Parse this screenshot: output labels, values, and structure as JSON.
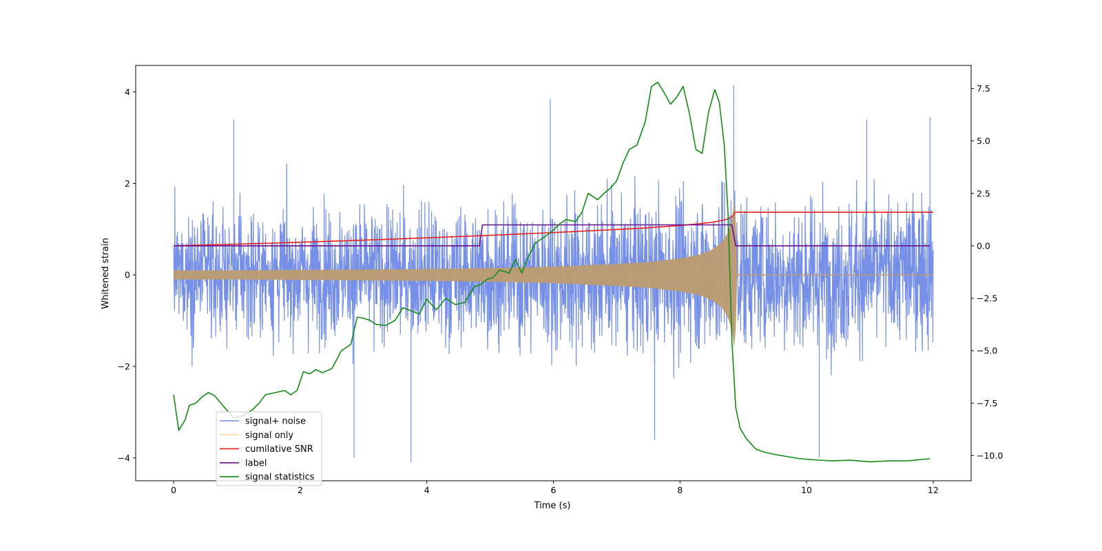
{
  "chart_data": {
    "type": "line",
    "title": "",
    "xlabel": "Time (s)",
    "ylabel": "Whitened strain",
    "y2label": "",
    "xlim": [
      -0.6,
      12.6
    ],
    "ylim": [
      -4.5,
      4.58
    ],
    "y2lim": [
      -11.2,
      8.6
    ],
    "grid": false,
    "legend_position": "bottom-left",
    "x_ticks": [
      0,
      2,
      4,
      6,
      8,
      10,
      12
    ],
    "x_tick_labels": [
      "0",
      "2",
      "4",
      "6",
      "8",
      "10",
      "12"
    ],
    "y_ticks": [
      -4,
      -2,
      0,
      2,
      4
    ],
    "y_tick_labels": [
      "−4",
      "−2",
      "0",
      "2",
      "4"
    ],
    "y2_ticks": [
      -10,
      -7.5,
      -5,
      -2.5,
      0,
      2.5,
      5,
      7.5
    ],
    "y2_tick_labels": [
      "−10.0",
      "−7.5",
      "−5.0",
      "−2.5",
      "0.0",
      "2.5",
      "5.0",
      "7.5"
    ],
    "series": [
      {
        "name": "signal+ noise",
        "color": "#6f8ae6",
        "axis": "left",
        "kind": "noise_trace",
        "x_range": [
          0,
          12
        ],
        "envelope": {
          "x": [
            0,
            2,
            4,
            6,
            7,
            8,
            8.5,
            8.85,
            9,
            10,
            12
          ],
          "upper": [
            2.7,
            2.8,
            2.9,
            3.1,
            3.2,
            3.4,
            3.6,
            4.15,
            3.3,
            3.2,
            3.4
          ],
          "lower": [
            -2.6,
            -2.7,
            -2.9,
            -3.1,
            -3.2,
            -3.4,
            -3.5,
            -3.6,
            -3.2,
            -3.3,
            -3.1
          ]
        },
        "extremes": [
          {
            "x": 0.95,
            "y": 3.4
          },
          {
            "x": 2.85,
            "y": -4.0
          },
          {
            "x": 3.75,
            "y": -4.1
          },
          {
            "x": 5.95,
            "y": 3.85
          },
          {
            "x": 7.6,
            "y": -3.6
          },
          {
            "x": 8.85,
            "y": 4.15
          },
          {
            "x": 10.2,
            "y": -4.0
          },
          {
            "x": 11.95,
            "y": 3.45
          },
          {
            "x": 10.95,
            "y": 3.4
          }
        ]
      },
      {
        "name": "signal only",
        "color": "#ffbb55",
        "fill_color": "#bb9b73",
        "axis": "left",
        "kind": "chirp_envelope",
        "x": [
          0,
          1,
          2,
          3,
          4,
          5,
          6,
          7,
          7.5,
          8,
          8.3,
          8.5,
          8.65,
          8.75,
          8.82,
          8.87,
          8.9,
          12
        ],
        "amplitude": [
          0.1,
          0.1,
          0.11,
          0.12,
          0.13,
          0.15,
          0.18,
          0.24,
          0.28,
          0.36,
          0.44,
          0.55,
          0.7,
          0.9,
          1.2,
          1.75,
          0.0,
          0.0
        ]
      },
      {
        "name": "cumilative SNR",
        "color": "#e8201c",
        "axis": "right",
        "x": [
          0,
          1,
          2,
          3,
          4,
          5,
          6,
          7,
          7.5,
          8,
          8.3,
          8.5,
          8.65,
          8.75,
          8.82,
          8.87,
          12
        ],
        "values": [
          0.0,
          0.08,
          0.17,
          0.27,
          0.38,
          0.5,
          0.63,
          0.78,
          0.86,
          0.97,
          1.05,
          1.12,
          1.2,
          1.27,
          1.38,
          1.6,
          1.6
        ]
      },
      {
        "name": "label",
        "color": "#6a0f8e",
        "axis": "right",
        "x": [
          0,
          4.83,
          4.88,
          8.82,
          8.88,
          11.95
        ],
        "values": [
          0,
          0,
          1,
          1,
          0,
          0
        ]
      },
      {
        "name": "signal statistics",
        "color": "#138a13",
        "axis": "right",
        "x": [
          0,
          0.08,
          0.18,
          0.25,
          0.35,
          0.45,
          0.55,
          0.65,
          0.8,
          0.95,
          1.1,
          1.25,
          1.35,
          1.45,
          1.6,
          1.75,
          1.85,
          1.95,
          2.05,
          2.15,
          2.25,
          2.35,
          2.5,
          2.65,
          2.8,
          2.9,
          3.0,
          3.1,
          3.2,
          3.35,
          3.5,
          3.62,
          3.75,
          3.88,
          4.0,
          4.15,
          4.3,
          4.45,
          4.6,
          4.75,
          4.85,
          4.95,
          5.05,
          5.15,
          5.3,
          5.4,
          5.5,
          5.6,
          5.72,
          5.85,
          6.0,
          6.1,
          6.2,
          6.35,
          6.45,
          6.55,
          6.7,
          6.8,
          6.9,
          7.0,
          7.1,
          7.2,
          7.32,
          7.45,
          7.55,
          7.65,
          7.75,
          7.85,
          7.95,
          8.05,
          8.15,
          8.25,
          8.35,
          8.45,
          8.55,
          8.62,
          8.7,
          8.76,
          8.82,
          8.88,
          8.95,
          9.05,
          9.2,
          9.35,
          9.5,
          9.7,
          9.9,
          10.1,
          10.4,
          10.7,
          11.0,
          11.3,
          11.6,
          11.95
        ],
        "values": [
          -7.1,
          -8.8,
          -8.3,
          -7.6,
          -7.5,
          -7.2,
          -7.0,
          -7.15,
          -7.7,
          -8.2,
          -8.1,
          -7.8,
          -7.5,
          -7.1,
          -7.0,
          -6.9,
          -7.1,
          -6.9,
          -6.0,
          -6.1,
          -5.9,
          -6.05,
          -5.85,
          -5.0,
          -4.7,
          -3.4,
          -3.45,
          -3.55,
          -3.75,
          -3.8,
          -3.55,
          -2.95,
          -3.1,
          -3.25,
          -2.55,
          -3.05,
          -2.5,
          -2.8,
          -2.7,
          -1.95,
          -1.85,
          -1.6,
          -1.5,
          -1.15,
          -1.3,
          -0.65,
          -1.3,
          -0.55,
          0.15,
          0.4,
          0.75,
          1.05,
          1.25,
          1.15,
          1.6,
          2.5,
          2.2,
          2.5,
          2.75,
          3.1,
          3.95,
          4.6,
          4.8,
          5.9,
          7.6,
          7.8,
          7.3,
          6.75,
          7.1,
          7.6,
          6.3,
          4.6,
          4.4,
          6.35,
          7.45,
          6.85,
          4.8,
          1.5,
          -4.5,
          -7.7,
          -8.7,
          -9.2,
          -9.7,
          -9.85,
          -9.95,
          -10.05,
          -10.15,
          -10.2,
          -10.25,
          -10.22,
          -10.3,
          -10.25,
          -10.25,
          -10.15
        ]
      }
    ]
  }
}
